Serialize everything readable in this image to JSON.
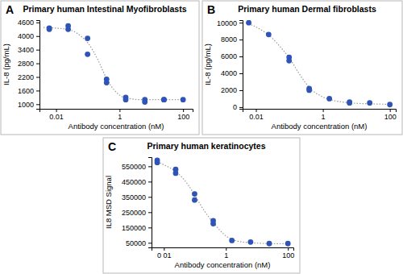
{
  "chart_data": [
    {
      "type": "scatter",
      "panel": "A",
      "title": "Primary human Intestinal Myofibroblasts",
      "x_label": "Antibody concentration (nM)",
      "y_label": "IL-8 (pg/mL)",
      "log": "x",
      "xlim": [
        0.003,
        200
      ],
      "xticks": [
        0.01,
        1,
        100
      ],
      "ylim": [
        800,
        4700
      ],
      "yticks": [
        1000,
        1600,
        2200,
        2800,
        3400,
        4000,
        4600
      ],
      "series": [
        {
          "type": "scatter",
          "marker": "circle",
          "color": "#2e54b8",
          "x": [
            0.0061,
            0.0061,
            0.024,
            0.024,
            0.098,
            0.098,
            0.39,
            0.39,
            1.56,
            1.56,
            6.25,
            6.25,
            25,
            25,
            100
          ],
          "values": [
            4350,
            4300,
            4450,
            4300,
            3900,
            3200,
            2100,
            1950,
            1300,
            1200,
            1200,
            1100,
            1200,
            1200,
            1200
          ]
        },
        {
          "type": "line",
          "line_style": "dotted",
          "color": "#9a9a9a",
          "x": [
            0.004,
            0.01,
            0.03,
            0.06,
            0.1,
            0.2,
            0.4,
            0.7,
            1,
            2,
            5,
            10,
            30,
            100
          ],
          "values": [
            4380,
            4350,
            4250,
            4000,
            3700,
            3000,
            2100,
            1600,
            1400,
            1250,
            1200,
            1200,
            1200,
            1200
          ]
        }
      ]
    },
    {
      "type": "scatter",
      "panel": "B",
      "title": "Primary human Dermal fibroblasts",
      "x_label": "Antibody concentration (nM)",
      "y_label": "IL-8 (pg/mL)",
      "log": "x",
      "xlim": [
        0.004,
        150
      ],
      "xticks": [
        0.01,
        1,
        100
      ],
      "ylim": [
        -200,
        10300
      ],
      "yticks": [
        0,
        2000,
        4000,
        6000,
        8000,
        10000
      ],
      "series": [
        {
          "type": "scatter",
          "marker": "circle",
          "color": "#2e54b8",
          "x": [
            0.0061,
            0.024,
            0.098,
            0.098,
            0.39,
            0.39,
            1.56,
            6.25,
            6.25,
            25,
            100
          ],
          "values": [
            10000,
            8600,
            5900,
            5500,
            2200,
            2000,
            1000,
            500,
            600,
            500,
            300
          ]
        },
        {
          "type": "line",
          "line_style": "dotted",
          "color": "#9a9a9a",
          "x": [
            0.005,
            0.01,
            0.03,
            0.06,
            0.1,
            0.2,
            0.4,
            1,
            2,
            5,
            10,
            30,
            100
          ],
          "values": [
            10000,
            9500,
            8200,
            6900,
            5800,
            3900,
            2300,
            1200,
            800,
            550,
            450,
            380,
            330
          ]
        }
      ]
    },
    {
      "type": "scatter",
      "panel": "C",
      "title": "Primary human keratinocytes",
      "x_label": "Antibody concentration (nM)",
      "y_label": "IL8 MSD Signal",
      "log": "x",
      "xlim": [
        0.004,
        150
      ],
      "xticks": [
        {
          "value": 0.01,
          "label": "0 01"
        },
        1,
        100
      ],
      "ylim": [
        20000,
        610000
      ],
      "yticks": [
        50000,
        150000,
        250000,
        350000,
        450000,
        550000
      ],
      "series": [
        {
          "type": "scatter",
          "marker": "circle",
          "color": "#2e54b8",
          "x": [
            0.0061,
            0.0061,
            0.024,
            0.024,
            0.098,
            0.098,
            0.39,
            0.39,
            1.56,
            6.25,
            25,
            100
          ],
          "values": [
            590000,
            575000,
            530000,
            505000,
            370000,
            330000,
            195000,
            175000,
            65000,
            55000,
            45000,
            45000
          ]
        },
        {
          "type": "line",
          "line_style": "dotted",
          "color": "#9a9a9a",
          "x": [
            0.005,
            0.01,
            0.03,
            0.06,
            0.1,
            0.2,
            0.4,
            1,
            2,
            5,
            10,
            30,
            100
          ],
          "values": [
            585000,
            560000,
            500000,
            430000,
            360000,
            260000,
            180000,
            95000,
            65000,
            52000,
            48000,
            45000,
            44000
          ]
        }
      ]
    }
  ]
}
